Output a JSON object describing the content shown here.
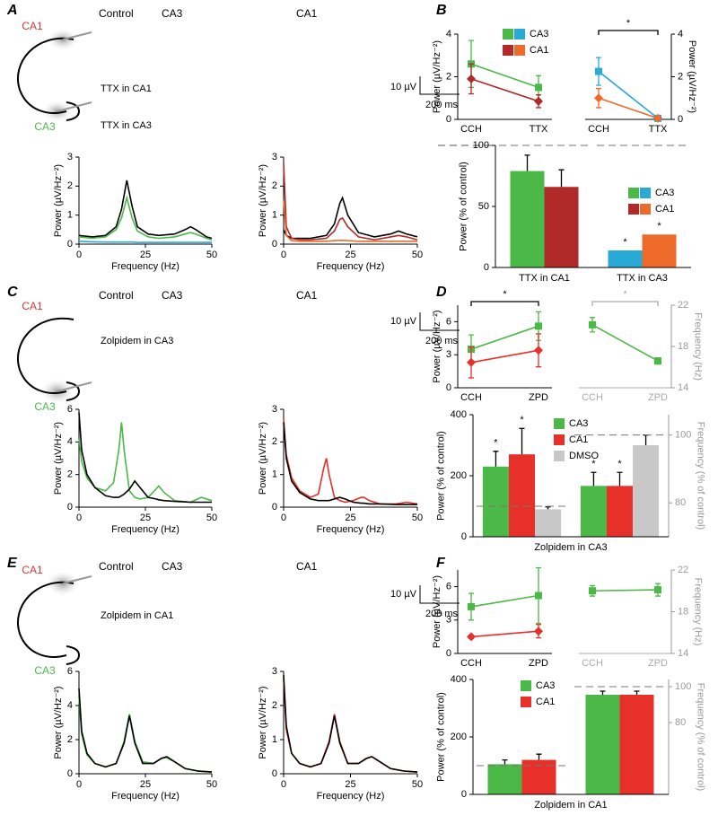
{
  "trace_panels": [
    {
      "letter": "A",
      "regions": [
        "CA1",
        "CA3"
      ],
      "headers": [
        "Control",
        "CA3",
        "CA1"
      ],
      "conditions": [
        "TTX in CA1",
        "TTX in CA3"
      ],
      "scale": [
        "10 µV",
        "200 ms"
      ]
    },
    {
      "letter": "C",
      "regions": [
        "CA1",
        "CA3"
      ],
      "headers": [
        "Control",
        "CA3",
        "CA1"
      ],
      "conditions": [
        "Zolpidem in CA3"
      ],
      "scale": [
        "10 µV",
        "200 ms"
      ]
    },
    {
      "letter": "E",
      "regions": [
        "CA1",
        "CA3"
      ],
      "headers": [
        "Control",
        "CA3",
        "CA1"
      ],
      "conditions": [
        "Zolpidem in CA1"
      ],
      "scale": [
        "10 µV",
        "200 ms"
      ]
    }
  ],
  "panel_letters": [
    "B",
    "D",
    "F"
  ],
  "chart_data": [
    {
      "type": "line",
      "xlabel": "Frequency (Hz)",
      "ylabel": "Power (µV/Hz⁻²)",
      "xlim": [
        0,
        50
      ],
      "xticks": [
        0,
        25,
        50
      ],
      "ylim": [
        0,
        3
      ],
      "yticks": [
        0,
        1,
        2,
        3
      ],
      "x": [
        0,
        5,
        10,
        14,
        16,
        18,
        20,
        22,
        26,
        30,
        36,
        40,
        42,
        44,
        48,
        50
      ],
      "series": [
        {
          "color": "#000000",
          "values": [
            0.3,
            0.25,
            0.3,
            0.6,
            1.2,
            2.2,
            1.3,
            0.6,
            0.35,
            0.3,
            0.35,
            0.5,
            0.6,
            0.5,
            0.25,
            0.2
          ]
        },
        {
          "color": "#4cb848",
          "values": [
            0.25,
            0.2,
            0.25,
            0.5,
            0.9,
            1.6,
            0.9,
            0.45,
            0.25,
            0.2,
            0.25,
            0.35,
            0.4,
            0.35,
            0.2,
            0.15
          ]
        },
        {
          "color": "#29a9d6",
          "values": [
            0.1,
            0.08,
            0.07,
            0.07,
            0.07,
            0.07,
            0.07,
            0.06,
            0.06,
            0.06,
            0.06,
            0.06,
            0.06,
            0.06,
            0.06,
            0.06
          ]
        }
      ]
    },
    {
      "type": "line",
      "xlabel": "Frequency (Hz)",
      "ylabel": "Power (µV/Hz⁻²)",
      "xlim": [
        0,
        50
      ],
      "xticks": [
        0,
        25,
        50
      ],
      "ylim": [
        0,
        3
      ],
      "yticks": [
        0,
        1,
        2,
        3
      ],
      "x": [
        0,
        1,
        3,
        6,
        10,
        16,
        19,
        21,
        22,
        24,
        28,
        34,
        40,
        43,
        46,
        50
      ],
      "series": [
        {
          "color": "#000000",
          "values": [
            0.5,
            0.3,
            0.2,
            0.2,
            0.2,
            0.3,
            0.7,
            1.4,
            1.6,
            1.0,
            0.4,
            0.25,
            0.35,
            0.45,
            0.35,
            0.25
          ]
        },
        {
          "color": "#b02a2a",
          "values": [
            2.8,
            0.6,
            0.2,
            0.15,
            0.15,
            0.2,
            0.45,
            0.85,
            0.9,
            0.6,
            0.25,
            0.15,
            0.25,
            0.3,
            0.25,
            0.15
          ]
        },
        {
          "color": "#ee6a2a",
          "values": [
            1.5,
            0.3,
            0.12,
            0.1,
            0.1,
            0.1,
            0.12,
            0.13,
            0.13,
            0.12,
            0.1,
            0.1,
            0.1,
            0.1,
            0.1,
            0.1
          ]
        }
      ]
    },
    {
      "type": "dot",
      "ylabel": "Power (µV/Hz⁻²)",
      "categories": [
        "CCH",
        "TTX"
      ],
      "ylim": [
        0,
        4
      ],
      "yticks": [
        0,
        2,
        4
      ],
      "series": [
        {
          "name": "CA3",
          "color": "#4cb848",
          "marker": "square",
          "values": [
            2.6,
            1.5
          ],
          "errors": [
            1.1,
            0.55
          ]
        },
        {
          "name": "CA1",
          "color": "#b02a2a",
          "marker": "diamond",
          "values": [
            1.9,
            0.85
          ],
          "errors": [
            0.7,
            0.3
          ]
        }
      ]
    },
    {
      "type": "dot",
      "y2label": "Power (µV/Hz⁻²)",
      "categories": [
        "CCH",
        "TTX"
      ],
      "y2lim": [
        0,
        4
      ],
      "y2ticks": [
        0,
        2,
        4
      ],
      "significance": "*",
      "series": [
        {
          "color": "#29a9d6",
          "marker": "square",
          "axis": "y2",
          "values": [
            2.25,
            0.05
          ],
          "errors": [
            0.65,
            0.05
          ]
        },
        {
          "color": "#ee6a2a",
          "marker": "diamond",
          "axis": "y2",
          "values": [
            1.0,
            0.05
          ],
          "errors": [
            0.45,
            0.05
          ]
        }
      ]
    },
    {
      "type": "bar",
      "ylabel": "Power (% of control)",
      "categories": [
        "TTX in CA1",
        "TTX in CA3"
      ],
      "ylim": [
        0,
        100
      ],
      "yticks": [
        0,
        50,
        100
      ],
      "reference_line": 100,
      "series": [
        {
          "name": "CA3",
          "colors": [
            "#4cb848",
            "#29a9d6"
          ],
          "values": [
            79,
            14
          ],
          "errors": [
            13,
            null
          ],
          "annotations": [
            null,
            "*"
          ]
        },
        {
          "name": "CA1",
          "colors": [
            "#b02a2a",
            "#ee6a2a"
          ],
          "values": [
            66,
            27
          ],
          "errors": [
            14,
            null
          ],
          "annotations": [
            null,
            "*"
          ]
        }
      ]
    },
    {
      "type": "line",
      "xlabel": "Frequency (Hz)",
      "ylabel": "Power (µV/Hz⁻²)",
      "xlim": [
        0,
        50
      ],
      "xticks": [
        0,
        25,
        50
      ],
      "ylim": [
        0,
        6
      ],
      "yticks": [
        0,
        2,
        4,
        6
      ],
      "x": [
        0,
        1,
        3,
        6,
        10,
        13,
        15,
        16,
        17,
        19,
        21,
        23,
        26,
        29,
        30,
        32,
        36,
        42,
        46,
        50
      ],
      "series": [
        {
          "color": "#4cb848",
          "values": [
            4.2,
            2.8,
            1.8,
            1.2,
            1.0,
            1.5,
            3.5,
            5.2,
            3.5,
            1.0,
            0.6,
            0.5,
            0.6,
            1.1,
            1.3,
            0.9,
            0.4,
            0.3,
            0.6,
            0.4
          ]
        },
        {
          "color": "#000000",
          "values": [
            5.8,
            3.5,
            2.0,
            1.2,
            0.7,
            0.6,
            0.6,
            0.7,
            0.8,
            1.1,
            1.6,
            1.2,
            0.6,
            0.5,
            0.45,
            0.4,
            0.35,
            0.3,
            0.3,
            0.3
          ]
        }
      ]
    },
    {
      "type": "line",
      "xlabel": "Frequency (Hz)",
      "ylabel": "Power (µV/Hz⁻²)",
      "xlim": [
        0,
        50
      ],
      "xticks": [
        0,
        25,
        50
      ],
      "ylim": [
        0,
        3
      ],
      "yticks": [
        0,
        1,
        2,
        3
      ],
      "x": [
        0,
        1,
        3,
        6,
        10,
        13,
        15,
        16,
        17,
        19,
        21,
        23,
        26,
        29,
        30,
        32,
        36,
        42,
        46,
        50
      ],
      "series": [
        {
          "color": "#e8302a",
          "values": [
            2.7,
            1.6,
            0.9,
            0.5,
            0.3,
            0.4,
            1.2,
            1.5,
            1.0,
            0.3,
            0.2,
            0.15,
            0.2,
            0.3,
            0.3,
            0.2,
            0.1,
            0.1,
            0.15,
            0.1
          ]
        },
        {
          "color": "#000000",
          "values": [
            2.6,
            1.5,
            0.8,
            0.45,
            0.25,
            0.2,
            0.2,
            0.2,
            0.2,
            0.25,
            0.3,
            0.25,
            0.15,
            0.12,
            0.12,
            0.1,
            0.1,
            0.08,
            0.08,
            0.08
          ]
        }
      ]
    },
    {
      "type": "dot",
      "ylabel": "Power (µV/Hz⁻²)",
      "categories": [
        "CCH",
        "ZPD"
      ],
      "ylim": [
        0,
        7.5
      ],
      "yticks": [
        0,
        3,
        6
      ],
      "significance": "*",
      "series": [
        {
          "color": "#4cb848",
          "marker": "square",
          "values": [
            3.5,
            5.6
          ],
          "errors": [
            1.3,
            1.3
          ]
        },
        {
          "color": "#e8302a",
          "marker": "diamond",
          "values": [
            2.3,
            3.4
          ],
          "errors": [
            1.4,
            1.5
          ]
        }
      ]
    },
    {
      "type": "dot",
      "y2label": "Frequency (Hz)",
      "categories": [
        "CCH",
        "ZPD"
      ],
      "y2lim": [
        14,
        22
      ],
      "y2ticks": [
        14,
        18,
        22
      ],
      "label_color": "#aaaaaa",
      "y2_color": "#999999",
      "significance": "*",
      "series": [
        {
          "color": "#4cb848",
          "marker": "square",
          "axis": "y2",
          "values": [
            20.1,
            16.6
          ],
          "errors": [
            0.7,
            0.3
          ]
        }
      ]
    },
    {
      "type": "bar",
      "xlabel": "Zolpidem in CA3",
      "ylabel": "Power (% of control)",
      "y2label": "Frequency (% of control)",
      "categories": [
        null,
        null
      ],
      "category_axes": [
        "y",
        "y2"
      ],
      "ylim": [
        0,
        400
      ],
      "yticks": [
        0,
        200,
        400
      ],
      "y2lim": [
        70,
        106
      ],
      "y2ticks": [
        80,
        100
      ],
      "y2_color": "#999999",
      "reference_line": 100,
      "series": [
        {
          "name": "CA3",
          "color": "#4cb848",
          "values": [
            230,
            85
          ],
          "errors": [
            50,
            4
          ],
          "annotations": [
            "*",
            "*"
          ]
        },
        {
          "name": "CA1",
          "color": "#e8302a",
          "values": [
            270,
            85
          ],
          "errors": [
            85,
            4
          ],
          "annotations": [
            "*",
            "*"
          ]
        },
        {
          "name": "DMSO",
          "color": "#c8c8c8",
          "values": [
            90,
            97
          ],
          "errors": [
            8,
            3
          ]
        }
      ]
    },
    {
      "type": "line",
      "xlabel": "Frequency (Hz)",
      "ylabel": "Power (µV/Hz⁻²)",
      "xlim": [
        0,
        50
      ],
      "xticks": [
        0,
        25,
        50
      ],
      "ylim": [
        0,
        6
      ],
      "yticks": [
        0,
        2,
        4,
        6
      ],
      "x": [
        0,
        1,
        3,
        6,
        10,
        14,
        17,
        19,
        21,
        24,
        28,
        31,
        33,
        36,
        40,
        45,
        50
      ],
      "series": [
        {
          "color": "#4cb848",
          "values": [
            4.5,
            2.3,
            1.1,
            0.6,
            0.4,
            0.6,
            1.9,
            3.5,
            1.9,
            0.7,
            0.6,
            0.9,
            0.95,
            0.7,
            0.3,
            0.15,
            0.1
          ]
        },
        {
          "color": "#000000",
          "values": [
            5.0,
            2.5,
            1.2,
            0.6,
            0.4,
            0.6,
            1.8,
            3.4,
            1.8,
            0.6,
            0.6,
            0.9,
            1.0,
            0.7,
            0.3,
            0.15,
            0.1
          ]
        }
      ]
    },
    {
      "type": "line",
      "xlabel": "Frequency (Hz)",
      "ylabel": "Power (µV/Hz⁻²)",
      "xlim": [
        0,
        50
      ],
      "xticks": [
        0,
        25,
        50
      ],
      "ylim": [
        0,
        3
      ],
      "yticks": [
        0,
        1,
        2,
        3
      ],
      "x": [
        0,
        1,
        3,
        6,
        10,
        14,
        17,
        19,
        21,
        24,
        28,
        31,
        33,
        36,
        40,
        45,
        50
      ],
      "series": [
        {
          "color": "#e8302a",
          "values": [
            2.8,
            1.3,
            0.6,
            0.3,
            0.2,
            0.3,
            0.95,
            1.75,
            0.95,
            0.3,
            0.3,
            0.45,
            0.5,
            0.35,
            0.15,
            0.08,
            0.05
          ]
        },
        {
          "color": "#000000",
          "values": [
            2.9,
            1.4,
            0.6,
            0.3,
            0.2,
            0.3,
            0.9,
            1.7,
            0.9,
            0.3,
            0.3,
            0.45,
            0.5,
            0.35,
            0.15,
            0.08,
            0.05
          ]
        }
      ]
    },
    {
      "type": "dot",
      "ylabel": "Power (µV/Hz⁻²)",
      "categories": [
        "CCH",
        "ZPD"
      ],
      "ylim": [
        0,
        7.5
      ],
      "yticks": [
        0,
        3,
        6
      ],
      "series": [
        {
          "color": "#4cb848",
          "marker": "square",
          "values": [
            4.2,
            5.2
          ],
          "errors": [
            1.2,
            2.5
          ]
        },
        {
          "color": "#e8302a",
          "marker": "diamond",
          "values": [
            1.5,
            2.0
          ],
          "errors": [
            0.15,
            0.6
          ]
        }
      ]
    },
    {
      "type": "dot",
      "y2label": "Frequency (Hz)",
      "categories": [
        "CCH",
        "ZPD"
      ],
      "y2lim": [
        14,
        22
      ],
      "y2ticks": [
        14,
        18,
        22
      ],
      "label_color": "#aaaaaa",
      "y2_color": "#999999",
      "series": [
        {
          "color": "#4cb848",
          "marker": "square",
          "axis": "y2",
          "values": [
            20.0,
            20.1
          ],
          "errors": [
            0.5,
            0.6
          ]
        }
      ]
    },
    {
      "type": "bar",
      "xlabel": "Zolpidem in CA1",
      "ylabel": "Power (% of control)",
      "y2label": "Frequency (% of control)",
      "categories": [
        null,
        null
      ],
      "category_axes": [
        "y",
        "y2"
      ],
      "ylim": [
        0,
        400
      ],
      "yticks": [
        0,
        200,
        400
      ],
      "y2lim": [
        40,
        104
      ],
      "y2ticks": [
        80,
        100
      ],
      "y2_color": "#999999",
      "reference_line": 100,
      "series": [
        {
          "name": "CA3",
          "color": "#4cb848",
          "values": [
            105,
            95.5
          ],
          "errors": [
            15,
            2
          ]
        },
        {
          "name": "CA1",
          "color": "#e8302a",
          "values": [
            120,
            95.5
          ],
          "errors": [
            20,
            2
          ]
        }
      ]
    }
  ]
}
